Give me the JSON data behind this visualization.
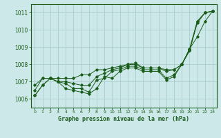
{
  "bg_color": "#cce8e8",
  "grid_color": "#aacccc",
  "line_color": "#1a5c1a",
  "title": "Graphe pression niveau de la mer (hPa)",
  "xlim": [
    -0.5,
    23.5
  ],
  "ylim": [
    1005.5,
    1011.5
  ],
  "xticks": [
    0,
    1,
    2,
    3,
    4,
    5,
    6,
    7,
    8,
    9,
    10,
    11,
    12,
    13,
    14,
    15,
    16,
    17,
    18,
    19,
    20,
    21,
    22,
    23
  ],
  "yticks": [
    1006,
    1007,
    1008,
    1009,
    1010,
    1011
  ],
  "series": [
    [
      1006.2,
      1006.8,
      1007.2,
      1007.0,
      1006.6,
      1006.5,
      1006.4,
      1006.3,
      1006.6,
      1007.3,
      1007.2,
      1007.6,
      1007.8,
      1007.8,
      1007.6,
      1007.6,
      1007.6,
      1007.1,
      1007.3,
      1008.0,
      1008.8,
      1010.4,
      1011.0,
      1011.1
    ],
    [
      1006.5,
      1007.2,
      1007.2,
      1007.0,
      1006.9,
      1006.6,
      1006.6,
      1006.4,
      1007.1,
      1007.2,
      1007.6,
      1007.7,
      1007.9,
      1007.9,
      1007.7,
      1007.7,
      1007.7,
      1007.2,
      1007.4,
      1008.0,
      1008.8,
      1010.5,
      1011.0,
      1011.1
    ],
    [
      1006.8,
      1007.2,
      1007.2,
      1007.0,
      1007.0,
      1006.9,
      1006.8,
      1006.8,
      1007.3,
      1007.5,
      1007.7,
      1007.8,
      1008.0,
      1008.0,
      1007.8,
      1007.8,
      1007.8,
      1007.6,
      1007.7,
      1008.0,
      1008.9,
      1010.5,
      1011.0,
      1011.1
    ],
    [
      1006.2,
      1006.8,
      1007.2,
      1007.2,
      1007.2,
      1007.2,
      1007.4,
      1007.4,
      1007.7,
      1007.7,
      1007.8,
      1007.9,
      1008.0,
      1008.1,
      1007.8,
      1007.8,
      1007.8,
      1007.7,
      1007.7,
      1008.0,
      1008.9,
      1009.6,
      1010.5,
      1011.1
    ]
  ]
}
